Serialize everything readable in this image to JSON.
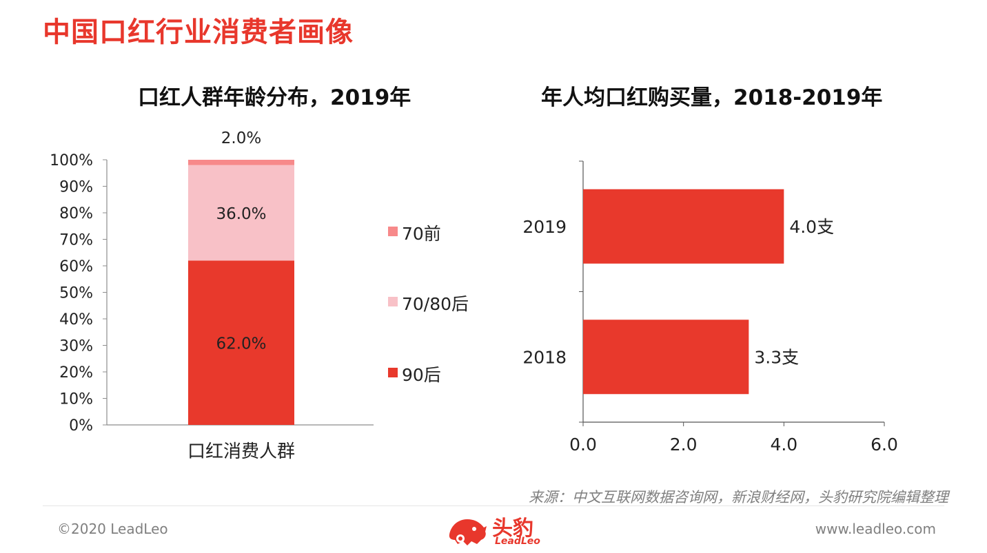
{
  "page": {
    "title": "中国口红行业消费者画像",
    "source": "来源：中文互联网数据咨询网，新浪财经网，头豹研究院编辑整理",
    "footer_left": "©2020 LeadLeo",
    "footer_right": "www.leadleo.com",
    "logo_cn": "头豹",
    "logo_en": "LeadLeo",
    "accent_color": "#e8372c"
  },
  "chart_data": [
    {
      "type": "bar",
      "stacked": true,
      "orientation": "vertical",
      "title": "口红人群年龄分布，2019年",
      "categories": [
        "口红消费人群"
      ],
      "series": [
        {
          "name": "90后",
          "values": [
            62.0
          ],
          "label": "62.0%",
          "color": "#e8392c"
        },
        {
          "name": "70/80后",
          "values": [
            36.0
          ],
          "label": "36.0%",
          "color": "#f8c1c7"
        },
        {
          "name": "70前",
          "values": [
            2.0
          ],
          "label": "2.0%",
          "color": "#f7898a"
        }
      ],
      "y_ticks": [
        "0%",
        "10%",
        "20%",
        "30%",
        "40%",
        "50%",
        "60%",
        "70%",
        "80%",
        "90%",
        "100%"
      ],
      "ylim": [
        0,
        100
      ],
      "legend_position": "right",
      "grid": false
    },
    {
      "type": "bar",
      "orientation": "horizontal",
      "title": "年人均口红购买量，2018-2019年",
      "categories": [
        "2019",
        "2018"
      ],
      "values": [
        4.0,
        3.3
      ],
      "labels": [
        "4.0支",
        "3.3支"
      ],
      "color": "#e8392c",
      "x_ticks": [
        "0.0",
        "2.0",
        "4.0",
        "6.0"
      ],
      "xlim": [
        0,
        6
      ],
      "grid": false
    }
  ]
}
